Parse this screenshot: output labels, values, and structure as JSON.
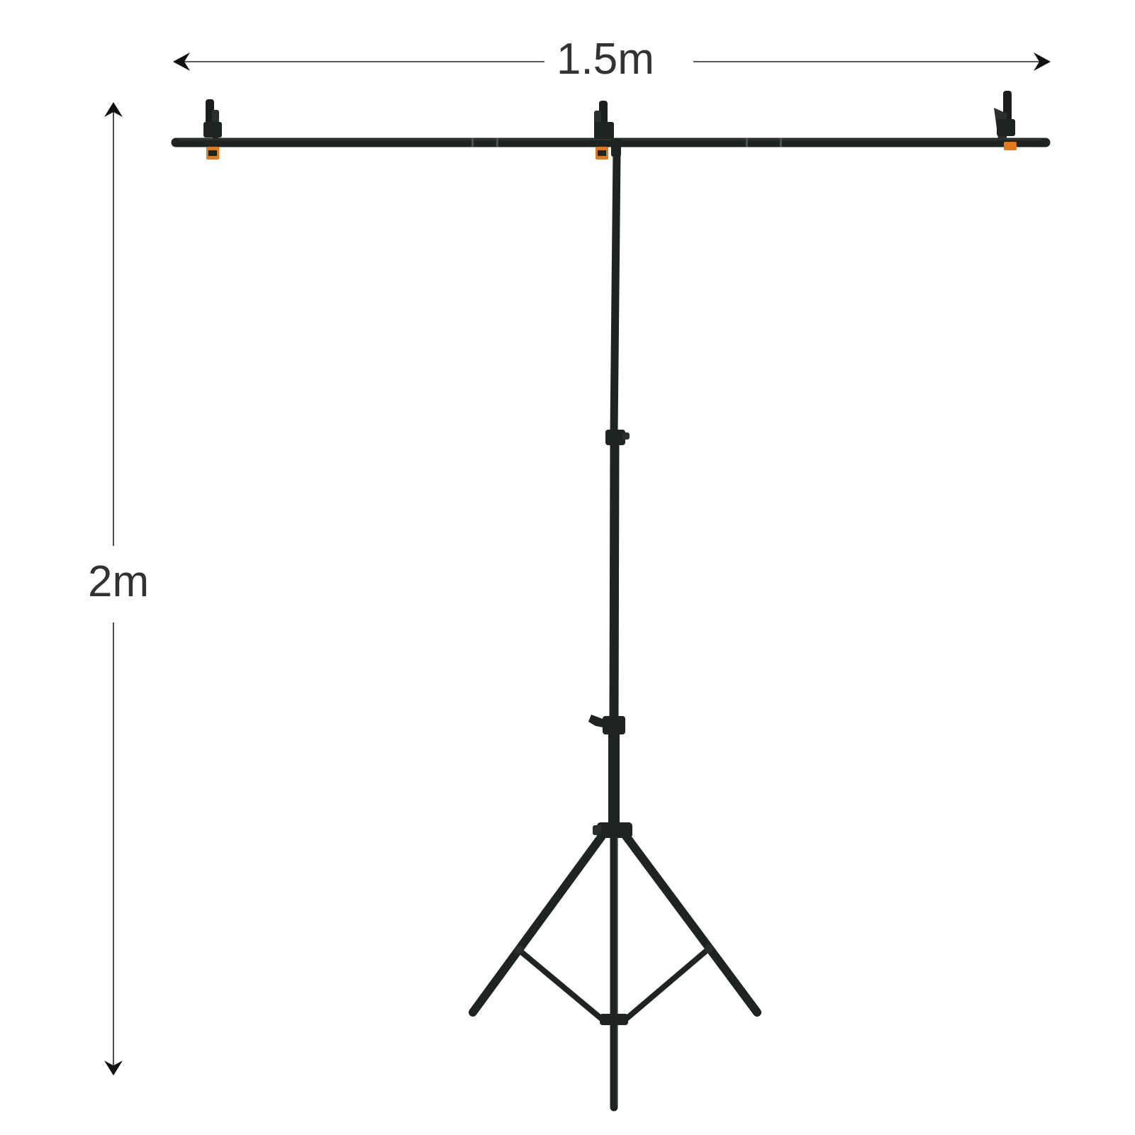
{
  "dimensions": {
    "width_label": "1.5m",
    "height_label": "2m"
  },
  "colors": {
    "background": "#ffffff",
    "metal": "#1e241f",
    "clip_accent": "#e07a1f",
    "dimension_line": "#222222",
    "label_text": "#333333"
  },
  "objects": {
    "crossbar": "crossbar",
    "stand": "tripod-stand",
    "clips": [
      "spring-clamp-left",
      "spring-clamp-center",
      "spring-clamp-right"
    ]
  }
}
